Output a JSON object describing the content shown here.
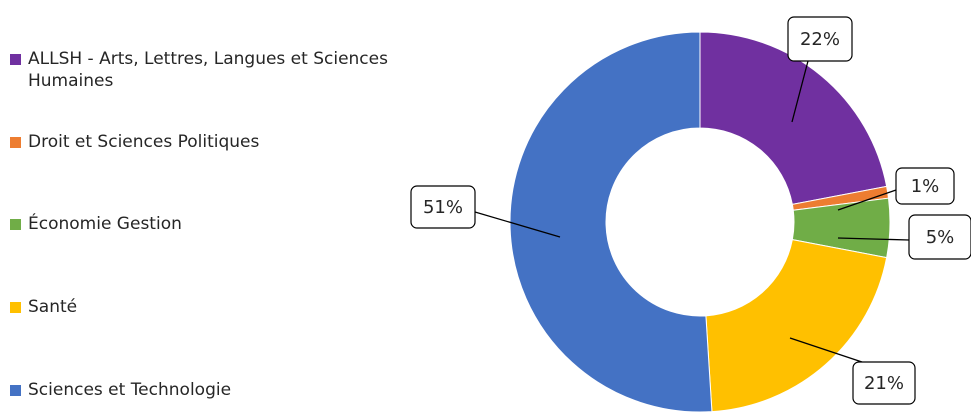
{
  "chart_data": {
    "type": "pie",
    "variant": "donut",
    "title": "",
    "legend_position": "left",
    "slices": [
      {
        "label": "ALLSH - Arts, Lettres, Langues et Sciences Humaines",
        "value": 22,
        "value_label": "22%",
        "color": "#7030A0"
      },
      {
        "label": "Droit et Sciences Politiques",
        "value": 1,
        "value_label": "1%",
        "color": "#ED7D31"
      },
      {
        "label": "Économie Gestion",
        "value": 5,
        "value_label": "5%",
        "color": "#70AD47"
      },
      {
        "label": "Santé",
        "value": 21,
        "value_label": "21%",
        "color": "#FFC000"
      },
      {
        "label": "Sciences et Technologie",
        "value": 51,
        "value_label": "51%",
        "color": "#4472C4"
      }
    ]
  }
}
